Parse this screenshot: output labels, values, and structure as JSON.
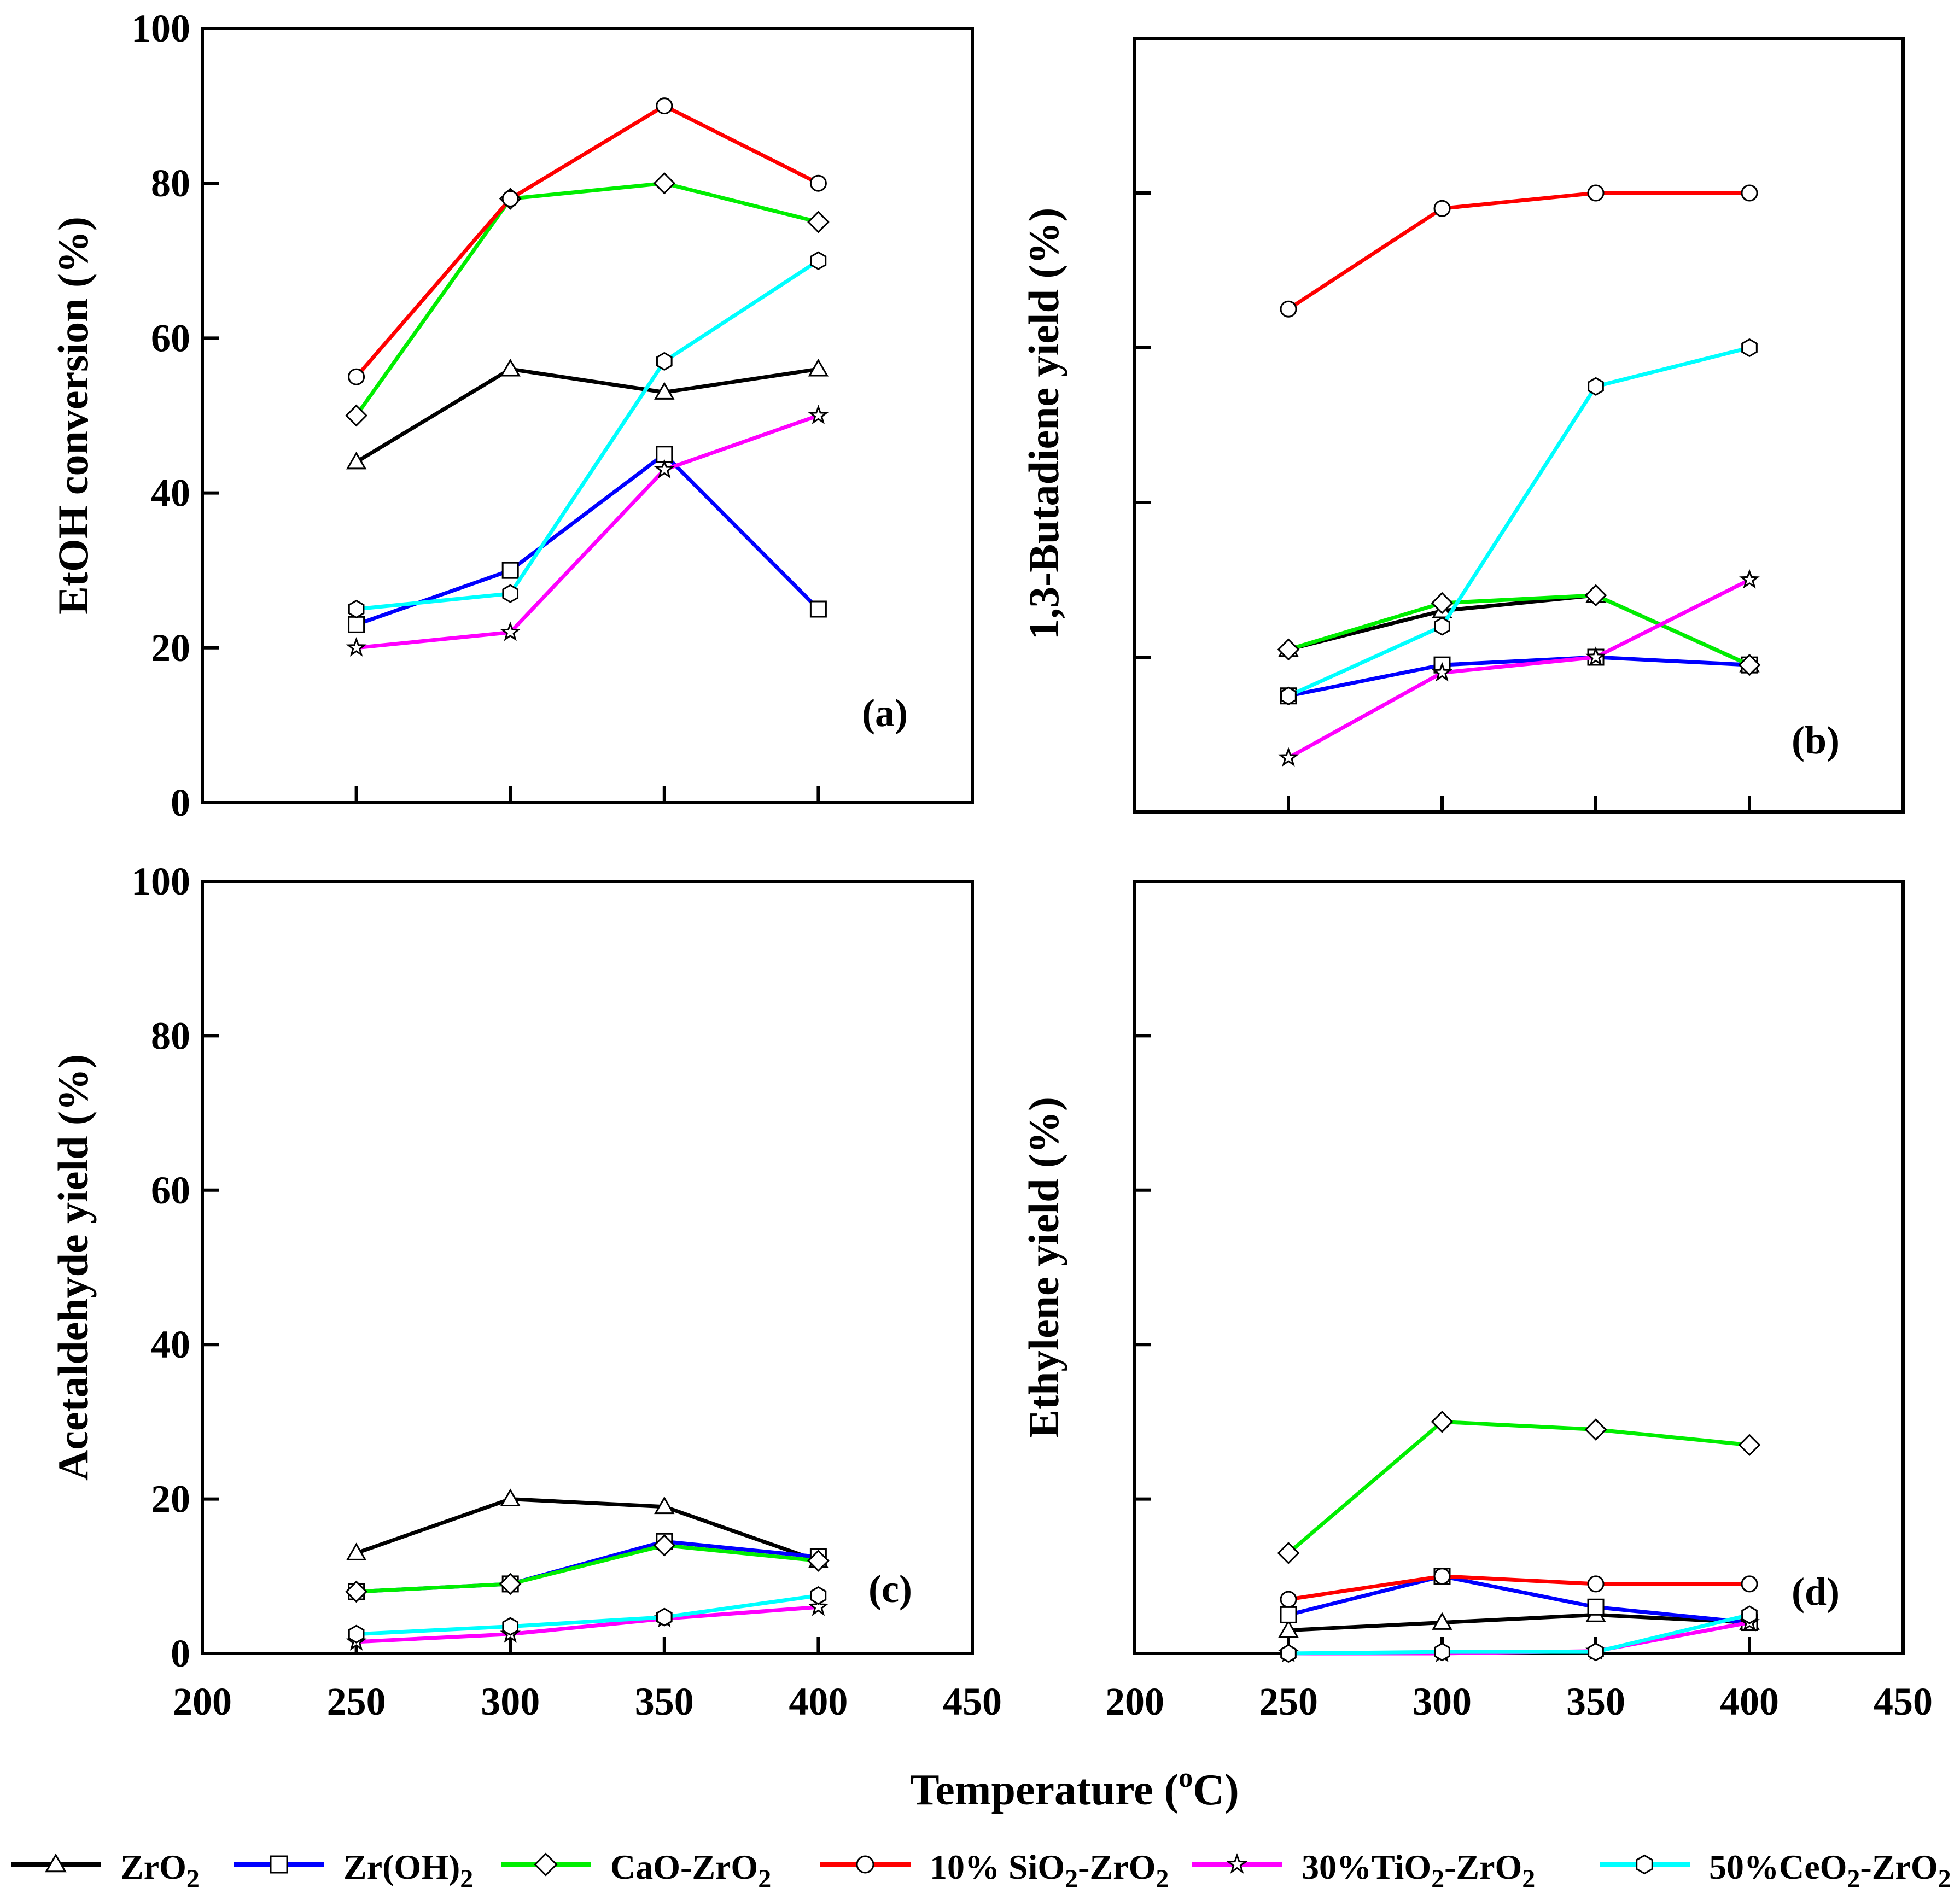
{
  "figure": {
    "xlabel_main": "Temperature (",
    "xlabel_sup": "o",
    "xlabel_end": "C)"
  },
  "colors": {
    "ZrO2": "#000000",
    "ZrOH2": "#0000ff",
    "CaO": "#00ee00",
    "SiO2": "#ff0000",
    "TiO2": "#ff00ff",
    "CeO2": "#00ffff"
  },
  "legend": [
    {
      "key": "ZrO2",
      "marker": "triangle",
      "parts": [
        [
          "Z",
          "n"
        ],
        [
          "rO",
          "n"
        ],
        [
          "2",
          "sub"
        ]
      ]
    },
    {
      "key": "ZrOH2",
      "marker": "square",
      "parts": [
        [
          "Zr(OH)",
          "n"
        ],
        [
          "2",
          "sub"
        ]
      ]
    },
    {
      "key": "CaO",
      "marker": "diamond",
      "parts": [
        [
          "CaO-ZrO",
          "n"
        ],
        [
          "2",
          "sub"
        ]
      ]
    },
    {
      "key": "SiO2",
      "marker": "circle",
      "parts": [
        [
          "10% SiO",
          "n"
        ],
        [
          "2",
          "sub"
        ],
        [
          "-ZrO",
          "n"
        ],
        [
          "2",
          "sub"
        ]
      ]
    },
    {
      "key": "TiO2",
      "marker": "star",
      "parts": [
        [
          "30%TiO",
          "n"
        ],
        [
          "2",
          "sub"
        ],
        [
          "-ZrO",
          "n"
        ],
        [
          "2",
          "sub"
        ]
      ]
    },
    {
      "key": "CeO2",
      "marker": "hexagon",
      "parts": [
        [
          "50%CeO",
          "n"
        ],
        [
          "2",
          "sub"
        ],
        [
          "-ZrO",
          "n"
        ],
        [
          "2",
          "sub"
        ]
      ]
    }
  ],
  "chart_data": [
    {
      "type": "line",
      "panel": "(a)",
      "ylabel": "EtOH conversion (%)",
      "xlim": [
        200,
        450
      ],
      "ylim": [
        0,
        100
      ],
      "x": [
        250,
        300,
        350,
        400
      ],
      "yticks": [
        0,
        20,
        40,
        60,
        80,
        100
      ],
      "show_ytick_labels": true,
      "show_xtick_labels": false,
      "series": [
        {
          "key": "ZrO2",
          "values": [
            44,
            56,
            53,
            56
          ]
        },
        {
          "key": "ZrOH2",
          "values": [
            23,
            30,
            45,
            25
          ]
        },
        {
          "key": "CaO",
          "values": [
            50,
            78,
            80,
            75
          ]
        },
        {
          "key": "SiO2",
          "values": [
            55,
            78,
            90,
            80
          ]
        },
        {
          "key": "TiO2",
          "values": [
            20,
            22,
            43,
            50
          ]
        },
        {
          "key": "CeO2",
          "values": [
            25,
            27,
            57,
            70
          ]
        }
      ]
    },
    {
      "type": "line",
      "panel": "(b)",
      "ylabel": "1,3-Butadiene yield (%)",
      "xlim": [
        200,
        450
      ],
      "ylim": [
        0,
        100
      ],
      "x": [
        250,
        300,
        350,
        400
      ],
      "yticks": [
        20,
        40,
        60,
        80
      ],
      "show_ytick_labels": false,
      "show_xtick_labels": false,
      "series": [
        {
          "key": "ZrO2",
          "values": [
            21,
            26,
            28,
            19
          ]
        },
        {
          "key": "ZrOH2",
          "values": [
            15,
            19,
            20,
            19
          ]
        },
        {
          "key": "CaO",
          "values": [
            21,
            27,
            28,
            19
          ]
        },
        {
          "key": "SiO2",
          "values": [
            65,
            78,
            80,
            80
          ]
        },
        {
          "key": "TiO2",
          "values": [
            7,
            18,
            20,
            30
          ]
        },
        {
          "key": "CeO2",
          "values": [
            15,
            24,
            55,
            60
          ]
        }
      ]
    },
    {
      "type": "line",
      "panel": "(c)",
      "ylabel": "Acetaldehyde yield (%)",
      "xlim": [
        200,
        450
      ],
      "ylim": [
        0,
        100
      ],
      "x": [
        250,
        300,
        350,
        400
      ],
      "yticks": [
        0,
        20,
        40,
        60,
        80,
        100
      ],
      "show_ytick_labels": true,
      "show_xtick_labels": true,
      "xtick_labels": [
        "200",
        "250",
        "300",
        "350",
        "400",
        "450"
      ],
      "series": [
        {
          "key": "ZrO2",
          "values": [
            13,
            20,
            19,
            12
          ]
        },
        {
          "key": "ZrOH2",
          "values": [
            8,
            9,
            14.5,
            12.5
          ]
        },
        {
          "key": "CaO",
          "values": [
            8,
            9,
            14,
            12
          ]
        },
        {
          "key": "TiO2",
          "values": [
            1.5,
            2.5,
            4.5,
            6
          ]
        },
        {
          "key": "CeO2",
          "values": [
            2.5,
            3.5,
            4.7,
            7.5
          ]
        }
      ]
    },
    {
      "type": "line",
      "panel": "(d)",
      "ylabel": "Ethylene yield (%)",
      "xlim": [
        200,
        450
      ],
      "ylim": [
        0,
        100
      ],
      "x": [
        250,
        300,
        350,
        400
      ],
      "yticks": [
        20,
        40,
        60,
        80
      ],
      "show_ytick_labels": false,
      "show_xtick_labels": true,
      "xtick_labels": [
        "200",
        "250",
        "300",
        "350",
        "400",
        "450"
      ],
      "series": [
        {
          "key": "ZrO2",
          "values": [
            3,
            4,
            5,
            4
          ]
        },
        {
          "key": "ZrOH2",
          "values": [
            5,
            10,
            6,
            4
          ]
        },
        {
          "key": "CaO",
          "values": [
            13,
            30,
            29,
            27
          ]
        },
        {
          "key": "SiO2",
          "values": [
            7,
            10,
            9,
            9
          ]
        },
        {
          "key": "TiO2",
          "values": [
            0,
            0,
            0.3,
            4
          ]
        },
        {
          "key": "CeO2",
          "values": [
            0,
            0.2,
            0.2,
            5
          ]
        }
      ]
    }
  ]
}
